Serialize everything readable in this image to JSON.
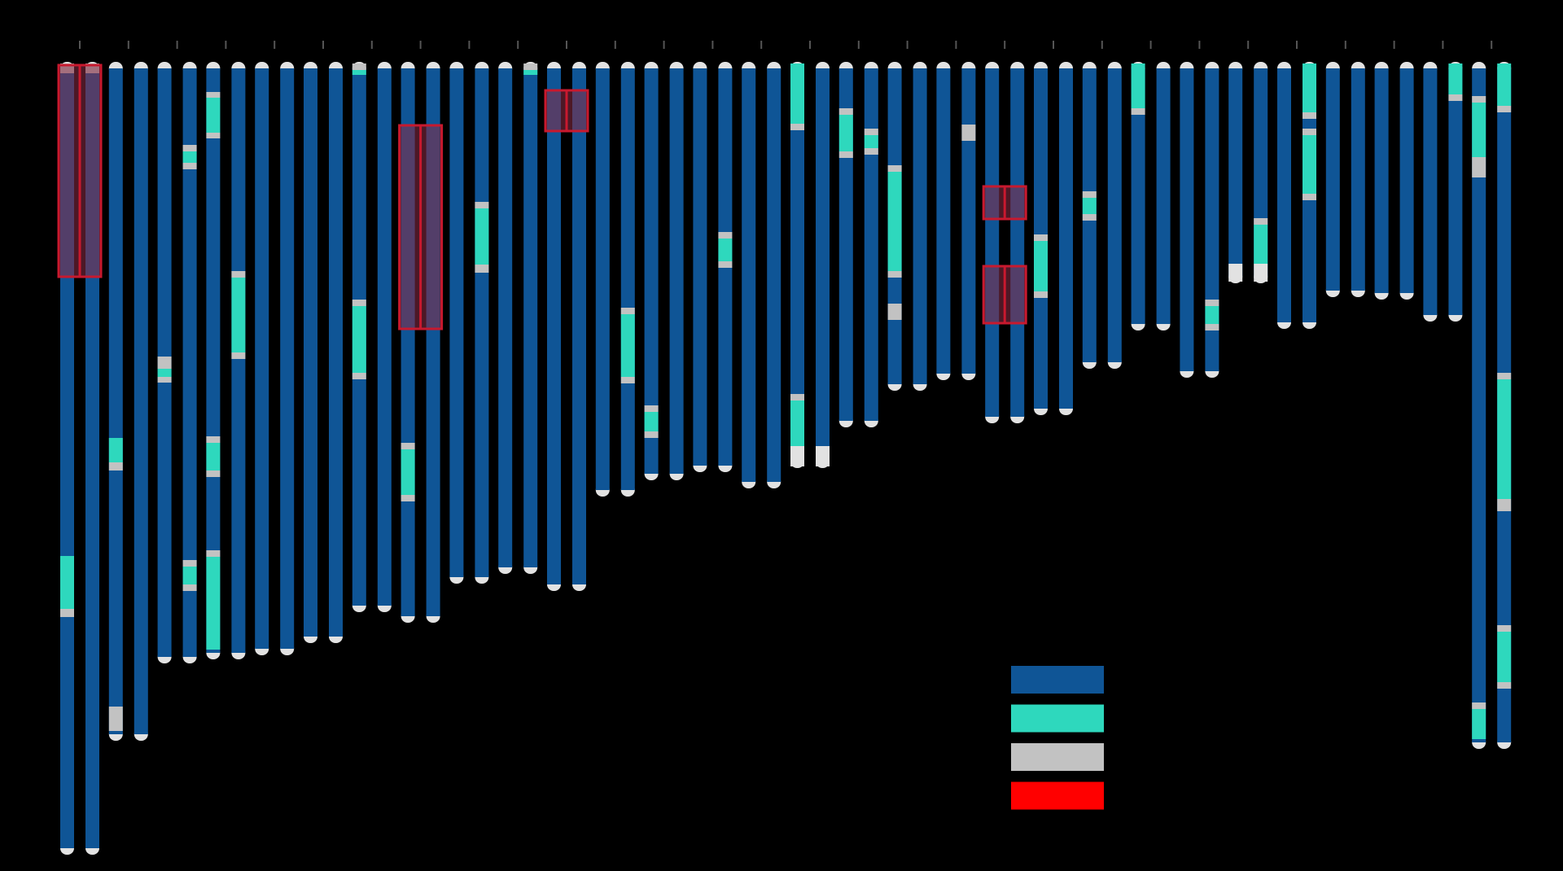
{
  "colors": {
    "background": "#000000",
    "chromatid": "#0F5596",
    "highlight": "#2ED8BD",
    "gray": "#C2C2C2",
    "tip": "#E2E2E2",
    "box_fill": "#8C2B45",
    "box_stroke": "#C8192E",
    "legend_red": "#FF0000",
    "tick": "#555555"
  },
  "legend": [
    {
      "name": "legend-swatch-blue",
      "color": "#0F5596"
    },
    {
      "name": "legend-swatch-teal",
      "color": "#2ED8BD"
    },
    {
      "name": "legend-swatch-gray",
      "color": "#C2C2C2"
    },
    {
      "name": "legend-swatch-red",
      "color": "#FF0000"
    }
  ],
  "chromosomes": [
    {
      "id": 1,
      "length": 970,
      "left": [
        {
          "start": 0,
          "end": 12,
          "type": "gray"
        },
        {
          "start": 605,
          "end": 670,
          "type": "highlight"
        },
        {
          "start": 670,
          "end": 680,
          "type": "gray"
        }
      ],
      "right": [
        {
          "start": 0,
          "end": 12,
          "type": "gray"
        }
      ],
      "boxes": [
        {
          "start": 2,
          "end": 262
        }
      ]
    },
    {
      "id": 2,
      "length": 830,
      "left": [
        {
          "start": 460,
          "end": 490,
          "type": "highlight"
        },
        {
          "start": 490,
          "end": 500,
          "type": "gray"
        },
        {
          "start": 790,
          "end": 820,
          "type": "gray"
        }
      ],
      "right": [],
      "boxes": []
    },
    {
      "id": 3,
      "length": 735,
      "left": [
        {
          "start": 360,
          "end": 375,
          "type": "gray"
        },
        {
          "start": 375,
          "end": 385,
          "type": "highlight"
        },
        {
          "start": 385,
          "end": 392,
          "type": "gray"
        }
      ],
      "right": [
        {
          "start": 100,
          "end": 108,
          "type": "gray"
        },
        {
          "start": 108,
          "end": 122,
          "type": "highlight"
        },
        {
          "start": 122,
          "end": 130,
          "type": "gray"
        },
        {
          "start": 610,
          "end": 618,
          "type": "gray"
        },
        {
          "start": 618,
          "end": 640,
          "type": "highlight"
        },
        {
          "start": 640,
          "end": 648,
          "type": "gray"
        }
      ],
      "boxes": []
    },
    {
      "id": 4,
      "length": 730,
      "left": [
        {
          "start": 35,
          "end": 42,
          "type": "gray"
        },
        {
          "start": 42,
          "end": 85,
          "type": "highlight"
        },
        {
          "start": 85,
          "end": 92,
          "type": "gray"
        },
        {
          "start": 458,
          "end": 466,
          "type": "gray"
        },
        {
          "start": 466,
          "end": 500,
          "type": "highlight"
        },
        {
          "start": 500,
          "end": 508,
          "type": "gray"
        },
        {
          "start": 598,
          "end": 606,
          "type": "gray"
        },
        {
          "start": 606,
          "end": 720,
          "type": "highlight"
        }
      ],
      "right": [
        {
          "start": 255,
          "end": 263,
          "type": "gray"
        },
        {
          "start": 263,
          "end": 355,
          "type": "highlight"
        },
        {
          "start": 355,
          "end": 363,
          "type": "gray"
        }
      ],
      "boxes": []
    },
    {
      "id": 5,
      "length": 725,
      "left": [],
      "right": [],
      "boxes": []
    },
    {
      "id": 6,
      "length": 710,
      "left": [],
      "right": [],
      "boxes": []
    },
    {
      "id": 7,
      "length": 672,
      "left": [
        {
          "start": 0,
          "end": 8,
          "type": "gray"
        },
        {
          "start": 8,
          "end": 14,
          "type": "highlight"
        },
        {
          "start": 290,
          "end": 298,
          "type": "gray"
        },
        {
          "start": 298,
          "end": 380,
          "type": "highlight"
        },
        {
          "start": 380,
          "end": 388,
          "type": "gray"
        }
      ],
      "right": [],
      "boxes": []
    },
    {
      "id": 8,
      "length": 685,
      "left": [
        {
          "start": 466,
          "end": 474,
          "type": "gray"
        },
        {
          "start": 474,
          "end": 530,
          "type": "highlight"
        },
        {
          "start": 530,
          "end": 538,
          "type": "gray"
        }
      ],
      "right": [],
      "boxes": [
        {
          "start": 76,
          "end": 326
        }
      ]
    },
    {
      "id": 9,
      "length": 637,
      "right": [
        {
          "start": 170,
          "end": 178,
          "type": "gray"
        },
        {
          "start": 178,
          "end": 247,
          "type": "highlight"
        },
        {
          "start": 247,
          "end": 257,
          "type": "gray"
        }
      ],
      "left": [],
      "boxes": []
    },
    {
      "id": 10,
      "length": 625,
      "right": [
        {
          "start": 0,
          "end": 8,
          "type": "gray"
        },
        {
          "start": 8,
          "end": 14,
          "type": "highlight"
        }
      ],
      "left": [],
      "boxes": []
    },
    {
      "id": 11,
      "length": 646,
      "left": [],
      "right": [],
      "boxes": [
        {
          "start": 33,
          "end": 83
        }
      ]
    },
    {
      "id": 12,
      "length": 530,
      "right": [
        {
          "start": 300,
          "end": 308,
          "type": "gray"
        },
        {
          "start": 308,
          "end": 385,
          "type": "highlight"
        },
        {
          "start": 385,
          "end": 393,
          "type": "gray"
        }
      ],
      "left": [],
      "boxes": []
    },
    {
      "id": 13,
      "length": 510,
      "left": [
        {
          "start": 420,
          "end": 428,
          "type": "gray"
        },
        {
          "start": 428,
          "end": 452,
          "type": "highlight"
        },
        {
          "start": 452,
          "end": 460,
          "type": "gray"
        }
      ],
      "right": [],
      "boxes": []
    },
    {
      "id": 14,
      "length": 500,
      "right": [
        {
          "start": 207,
          "end": 215,
          "type": "gray"
        },
        {
          "start": 215,
          "end": 243,
          "type": "highlight"
        },
        {
          "start": 243,
          "end": 251,
          "type": "gray"
        }
      ],
      "left": [],
      "boxes": []
    },
    {
      "id": 15,
      "length": 520,
      "left": [],
      "right": [],
      "boxes": []
    },
    {
      "id": 16,
      "length": 495,
      "left": [
        {
          "start": 0,
          "end": 74,
          "type": "highlight"
        },
        {
          "start": 74,
          "end": 82,
          "type": "gray"
        },
        {
          "start": 406,
          "end": 414,
          "type": "gray"
        },
        {
          "start": 414,
          "end": 470,
          "type": "highlight"
        },
        {
          "start": 470,
          "end": 495,
          "type": "tip"
        }
      ],
      "right": [
        {
          "start": 470,
          "end": 495,
          "type": "tip"
        }
      ],
      "boxes": []
    },
    {
      "id": 17,
      "length": 445,
      "left": [
        {
          "start": 55,
          "end": 63,
          "type": "gray"
        },
        {
          "start": 63,
          "end": 108,
          "type": "highlight"
        },
        {
          "start": 108,
          "end": 116,
          "type": "gray"
        }
      ],
      "right": [
        {
          "start": 80,
          "end": 88,
          "type": "gray"
        },
        {
          "start": 88,
          "end": 104,
          "type": "highlight"
        },
        {
          "start": 104,
          "end": 112,
          "type": "gray"
        }
      ],
      "boxes": []
    },
    {
      "id": 18,
      "length": 400,
      "left": [
        {
          "start": 125,
          "end": 133,
          "type": "gray"
        },
        {
          "start": 133,
          "end": 255,
          "type": "highlight"
        },
        {
          "start": 255,
          "end": 263,
          "type": "gray"
        },
        {
          "start": 295,
          "end": 315,
          "type": "gray"
        }
      ],
      "right": [],
      "boxes": []
    },
    {
      "id": 19,
      "length": 387,
      "right": [
        {
          "start": 75,
          "end": 95,
          "type": "gray"
        }
      ],
      "left": [],
      "boxes": []
    },
    {
      "id": 20,
      "length": 440,
      "left": [],
      "right": [],
      "boxes": [
        {
          "start": 151,
          "end": 191
        },
        {
          "start": 249,
          "end": 319
        }
      ]
    },
    {
      "id": 21,
      "length": 430,
      "left": [
        {
          "start": 210,
          "end": 218,
          "type": "gray"
        },
        {
          "start": 218,
          "end": 280,
          "type": "highlight"
        },
        {
          "start": 280,
          "end": 288,
          "type": "gray"
        }
      ],
      "right": [],
      "boxes": []
    },
    {
      "id": 22,
      "length": 373,
      "left": [
        {
          "start": 157,
          "end": 165,
          "type": "gray"
        },
        {
          "start": 165,
          "end": 185,
          "type": "highlight"
        },
        {
          "start": 185,
          "end": 193,
          "type": "gray"
        }
      ],
      "right": [],
      "boxes": []
    },
    {
      "id": 23,
      "length": 326,
      "left": [
        {
          "start": 0,
          "end": 55,
          "type": "highlight"
        },
        {
          "start": 55,
          "end": 63,
          "type": "gray"
        }
      ],
      "right": [],
      "boxes": []
    },
    {
      "id": 24,
      "length": 384,
      "right": [
        {
          "start": 290,
          "end": 298,
          "type": "gray"
        },
        {
          "start": 298,
          "end": 320,
          "type": "highlight"
        },
        {
          "start": 320,
          "end": 328,
          "type": "gray"
        }
      ],
      "left": [],
      "boxes": []
    },
    {
      "id": 25,
      "length": 268,
      "left": [
        {
          "start": 246,
          "end": 268,
          "type": "tip"
        }
      ],
      "right": [
        {
          "start": 190,
          "end": 198,
          "type": "gray"
        },
        {
          "start": 198,
          "end": 246,
          "type": "highlight"
        },
        {
          "start": 246,
          "end": 268,
          "type": "tip"
        }
      ],
      "boxes": []
    },
    {
      "id": 26,
      "length": 324,
      "right": [
        {
          "start": 0,
          "end": 60,
          "type": "highlight"
        },
        {
          "start": 60,
          "end": 68,
          "type": "gray"
        },
        {
          "start": 80,
          "end": 88,
          "type": "gray"
        },
        {
          "start": 88,
          "end": 160,
          "type": "highlight"
        },
        {
          "start": 160,
          "end": 168,
          "type": "gray"
        }
      ],
      "left": [],
      "boxes": []
    },
    {
      "id": 27,
      "length": 285,
      "left": [],
      "right": [],
      "boxes": []
    },
    {
      "id": 28,
      "length": 288,
      "left": [],
      "right": [],
      "boxes": []
    },
    {
      "id": 29,
      "length": 315,
      "right": [
        {
          "start": 0,
          "end": 38,
          "type": "highlight"
        },
        {
          "start": 38,
          "end": 46,
          "type": "gray"
        }
      ],
      "left": [],
      "boxes": []
    },
    {
      "id": 30,
      "length": 840,
      "left": [
        {
          "start": 40,
          "end": 48,
          "type": "gray"
        },
        {
          "start": 48,
          "end": 115,
          "type": "highlight"
        },
        {
          "start": 115,
          "end": 140,
          "type": "gray"
        },
        {
          "start": 785,
          "end": 793,
          "type": "gray"
        },
        {
          "start": 793,
          "end": 830,
          "type": "highlight"
        }
      ],
      "right": [
        {
          "start": 0,
          "end": 52,
          "type": "highlight"
        },
        {
          "start": 52,
          "end": 60,
          "type": "gray"
        },
        {
          "start": 380,
          "end": 388,
          "type": "gray"
        },
        {
          "start": 388,
          "end": 535,
          "type": "highlight"
        },
        {
          "start": 535,
          "end": 550,
          "type": "gray"
        },
        {
          "start": 690,
          "end": 698,
          "type": "gray"
        },
        {
          "start": 698,
          "end": 760,
          "type": "highlight"
        },
        {
          "start": 760,
          "end": 768,
          "type": "gray"
        }
      ],
      "boxes": []
    }
  ]
}
